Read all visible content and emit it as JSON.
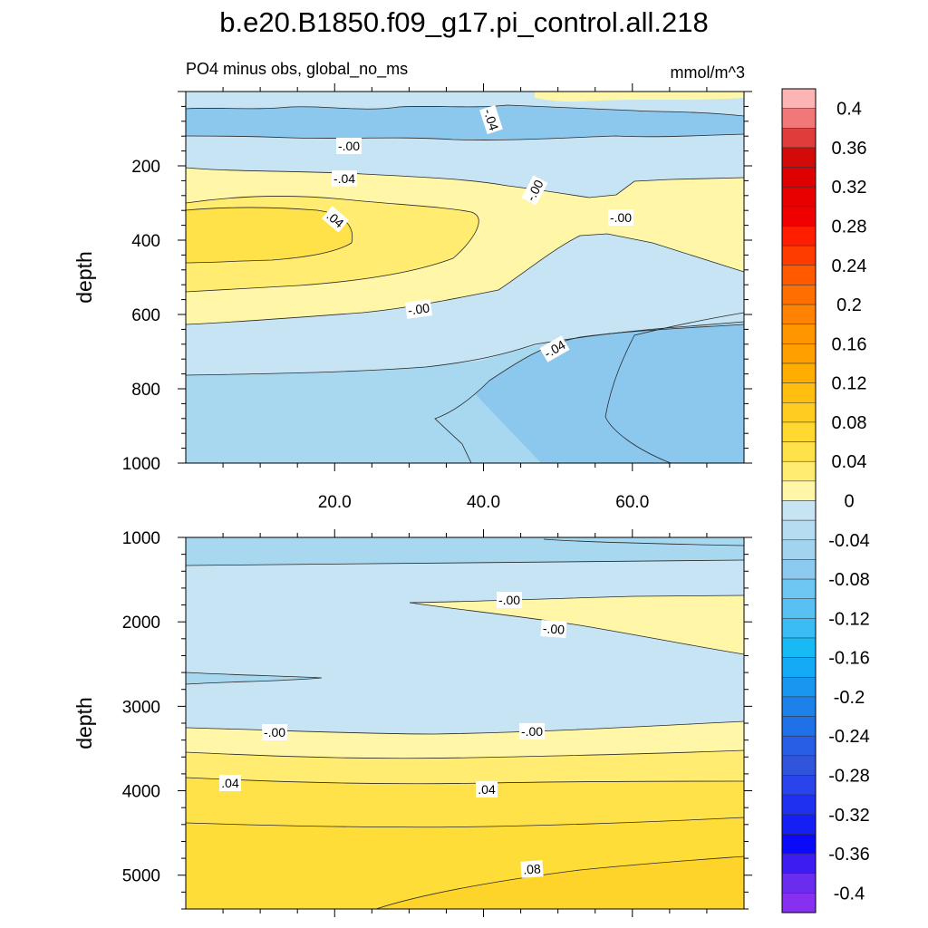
{
  "title": "b.e20.B1850.f09_g17.pi_control.all.218",
  "subtitle_left": "PO4 minus obs, global_no_ms",
  "subtitle_right": "mmol/m^3",
  "colorbar": {
    "labels": [
      "0.4",
      "0.36",
      "0.32",
      "0.28",
      "0.24",
      "0.2",
      "0.16",
      "0.12",
      "0.08",
      "0.04",
      "0",
      "-0.04",
      "-0.08",
      "-0.12",
      "-0.16",
      "-0.2",
      "-0.24",
      "-0.28",
      "-0.32",
      "-0.36",
      "-0.4"
    ],
    "colors": [
      "#fcb4b4",
      "#f07878",
      "#e03c3c",
      "#d20a0a",
      "#de0000",
      "#e80000",
      "#f00000",
      "#ff1e00",
      "#ff3c00",
      "#ff5a00",
      "#ff6e00",
      "#ff8200",
      "#ff9600",
      "#ffa000",
      "#ffae00",
      "#ffbe10",
      "#ffcc22",
      "#ffd830",
      "#ffe24a",
      "#ffec70",
      "#fff6a8",
      "#c6e4f4",
      "#b6dcf1",
      "#a2d4ef",
      "#8ccbef",
      "#6ec6f2",
      "#58c0f2",
      "#3cbcf5",
      "#18baf6",
      "#14aaf5",
      "#1896f0",
      "#1c82ea",
      "#2070e8",
      "#285ee4",
      "#3054dc",
      "#2844ea",
      "#2030f0",
      "#141ef5",
      "#0a0af8",
      "#3c1cf0",
      "#6a2cee",
      "#8830f0"
    ]
  },
  "chart_data": [
    {
      "type": "heatmap",
      "subplot": "upper",
      "contour_labels": [
        "-.04",
        ".04",
        "-.00",
        "-.04",
        "-.00",
        "-.00",
        "-.04",
        "-.00"
      ],
      "xticks": [
        "20.0",
        "40.0",
        "60.0"
      ],
      "xtick_values": [
        20,
        40,
        60
      ],
      "xlim": [
        0,
        75
      ],
      "yticks": [
        "200",
        "400",
        "600",
        "800",
        "1000"
      ],
      "ytick_values": [
        200,
        400,
        600,
        800,
        1000
      ],
      "ylim": [
        1000,
        0
      ],
      "ylabel": "depth"
    },
    {
      "type": "heatmap",
      "subplot": "lower",
      "contour_labels": [
        "-.00",
        "-.00",
        "-.00",
        "-.00",
        ".04",
        ".04",
        ".08"
      ],
      "xlim": [
        0,
        75
      ],
      "yticks": [
        "1000",
        "2000",
        "3000",
        "4000",
        "5000"
      ],
      "ytick_values": [
        1000,
        2000,
        3000,
        4000,
        5000
      ],
      "ylim": [
        5400,
        1000
      ],
      "ylabel": "depth"
    }
  ]
}
